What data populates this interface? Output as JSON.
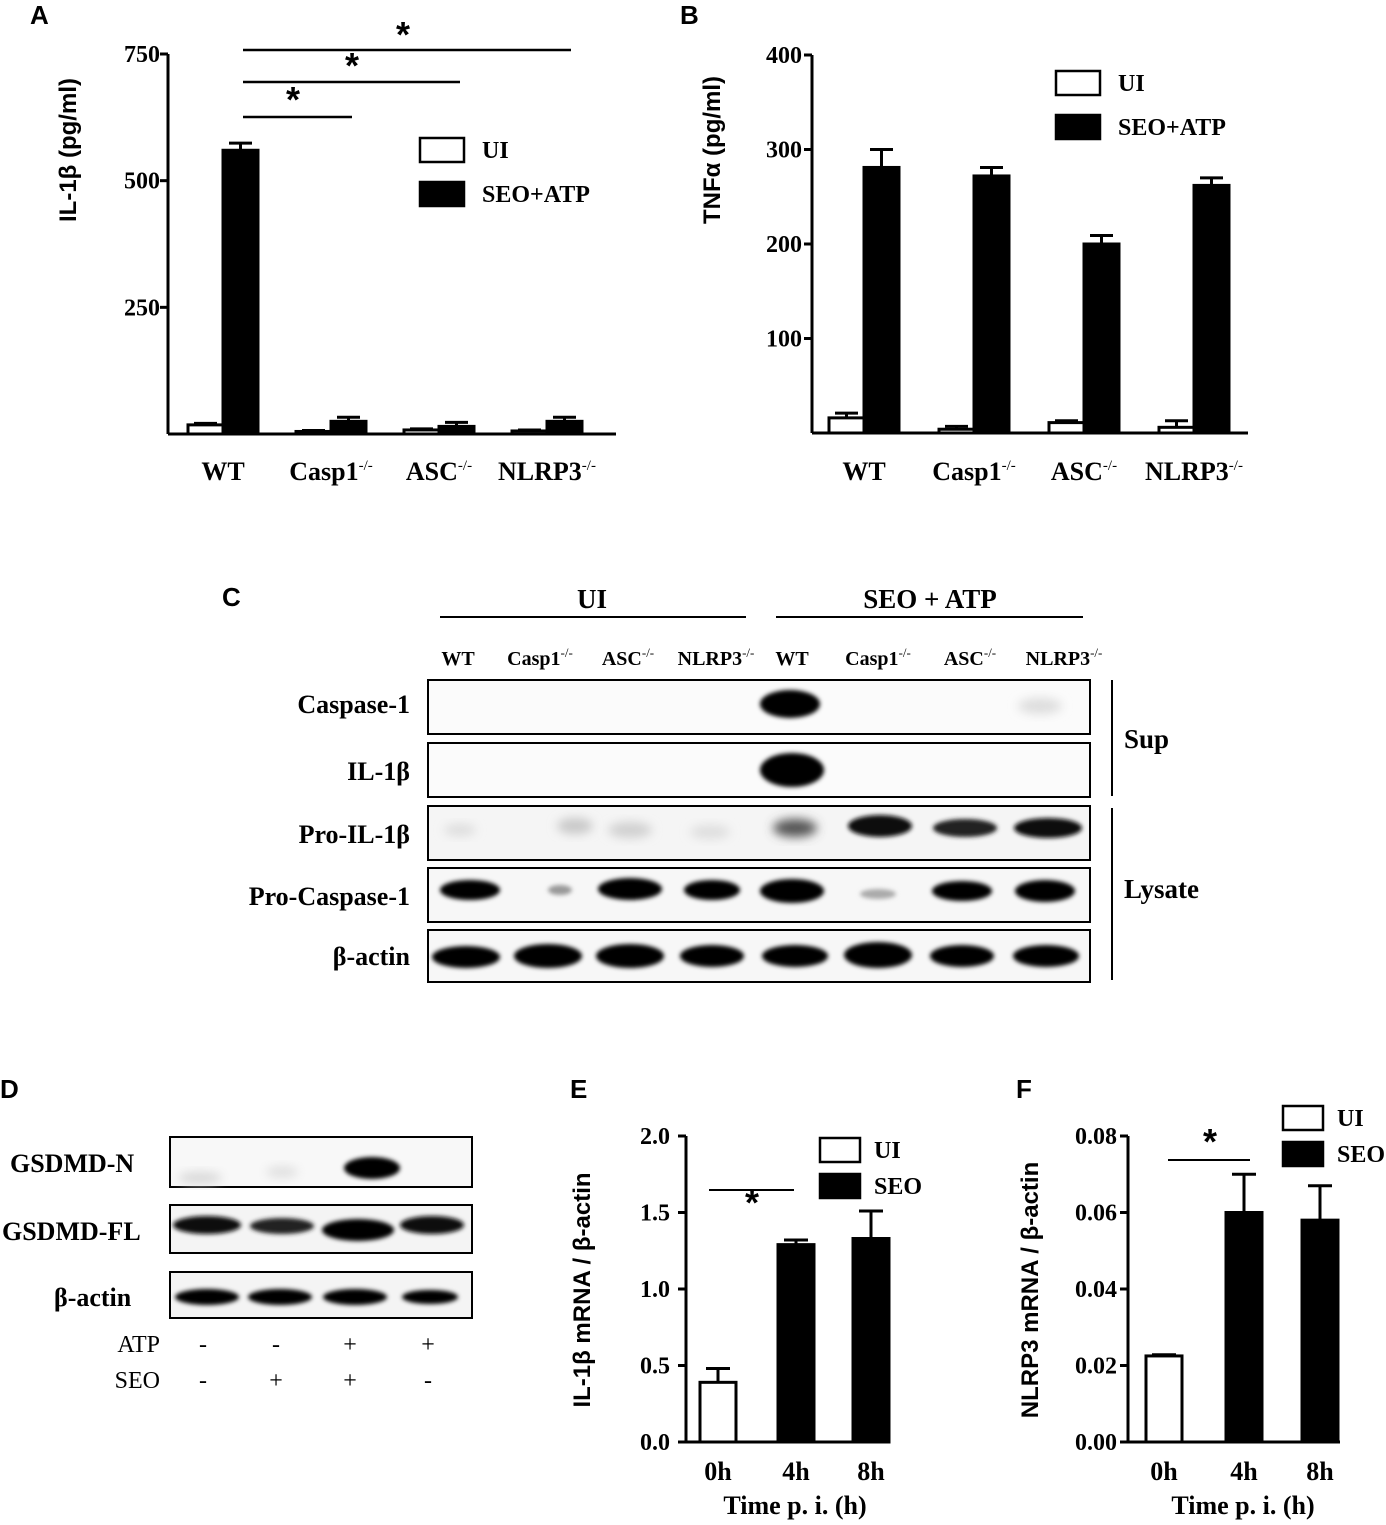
{
  "panels": {
    "A": "A",
    "B": "B",
    "C": "C",
    "D": "D",
    "E": "E",
    "F": "F"
  },
  "chart_data": [
    {
      "id": "A",
      "type": "bar",
      "ylabel": "IL-1β (pg/ml)",
      "ylim": [
        0,
        750
      ],
      "yticks": [
        "250",
        "500",
        "750"
      ],
      "categories": [
        "WT",
        "Casp1",
        "ASC",
        "NLRP3"
      ],
      "category_superscript": "-/-",
      "series": [
        {
          "name": "UI",
          "color": "#ffffff",
          "values": [
            18,
            5,
            8,
            6
          ],
          "errors": [
            3,
            2,
            2,
            2
          ]
        },
        {
          "name": "SEO+ATP",
          "color": "#000000",
          "values": [
            560,
            25,
            15,
            25
          ],
          "errors": [
            14,
            8,
            8,
            8
          ]
        }
      ],
      "significance": [
        "*",
        "*",
        "*"
      ]
    },
    {
      "id": "B",
      "type": "bar",
      "ylabel": "TNFα (pg/ml)",
      "ylim": [
        0,
        400
      ],
      "yticks": [
        "100",
        "200",
        "300",
        "400"
      ],
      "categories": [
        "WT",
        "Casp1",
        "ASC",
        "NLRP3"
      ],
      "category_superscript": "-/-",
      "series": [
        {
          "name": "UI",
          "color": "#ffffff",
          "values": [
            16,
            4,
            11,
            6
          ],
          "errors": [
            5,
            3,
            2,
            7
          ]
        },
        {
          "name": "SEO+ATP",
          "color": "#000000",
          "values": [
            281,
            272,
            200,
            262
          ],
          "errors": [
            19,
            9,
            9,
            8
          ]
        }
      ]
    },
    {
      "id": "E",
      "type": "bar",
      "ylabel": "IL-1β mRNA / β-actin",
      "xlabel": "Time p. i. (h)",
      "ylim": [
        0,
        2.0
      ],
      "yticks": [
        "0.0",
        "0.5",
        "1.0",
        "1.5",
        "2.0"
      ],
      "categories": [
        "0h",
        "4h",
        "8h"
      ],
      "values": [
        0.39,
        1.29,
        1.33
      ],
      "errors": [
        0.09,
        0.03,
        0.18
      ],
      "bar_series": [
        "UI",
        "SEO",
        "SEO"
      ],
      "legend": [
        {
          "name": "UI",
          "color": "#ffffff"
        },
        {
          "name": "SEO",
          "color": "#000000"
        }
      ],
      "significance": [
        "*"
      ]
    },
    {
      "id": "F",
      "type": "bar",
      "ylabel": "NLRP3 mRNA / β-actin",
      "xlabel": "Time p. i. (h)",
      "ylim": [
        0,
        0.08
      ],
      "yticks": [
        "0.00",
        "0.02",
        "0.04",
        "0.06",
        "0.08"
      ],
      "categories": [
        "0h",
        "4h",
        "8h"
      ],
      "values": [
        0.0225,
        0.06,
        0.058
      ],
      "errors": [
        0.0003,
        0.01,
        0.009
      ],
      "bar_series": [
        "UI",
        "SEO",
        "SEO"
      ],
      "legend": [
        {
          "name": "UI",
          "color": "#ffffff"
        },
        {
          "name": "SEO",
          "color": "#000000"
        }
      ],
      "significance": [
        "*"
      ]
    }
  ],
  "blotC": {
    "groups": [
      "UI",
      "SEO + ATP"
    ],
    "lanes": [
      "WT",
      "Casp1",
      "ASC",
      "NLRP3",
      "WT",
      "Casp1",
      "ASC",
      "NLRP3"
    ],
    "lane_superscripts": [
      "",
      "-/-",
      "-/-",
      "-/-",
      "",
      "-/-",
      "-/-",
      "-/-"
    ],
    "rows": [
      "Caspase-1",
      "IL-1β",
      "Pro-IL-1β",
      "Pro-Caspase-1",
      "β-actin"
    ],
    "fractions": [
      "Sup",
      "Lysate"
    ]
  },
  "blotD": {
    "rows": [
      "GSDMD-N",
      "GSDMD-FL",
      "β-actin"
    ],
    "conditions": [
      {
        "label": "ATP",
        "values": [
          "-",
          "-",
          "+",
          "+"
        ]
      },
      {
        "label": "SEO",
        "values": [
          "-",
          "+",
          "+",
          "-"
        ]
      }
    ]
  }
}
